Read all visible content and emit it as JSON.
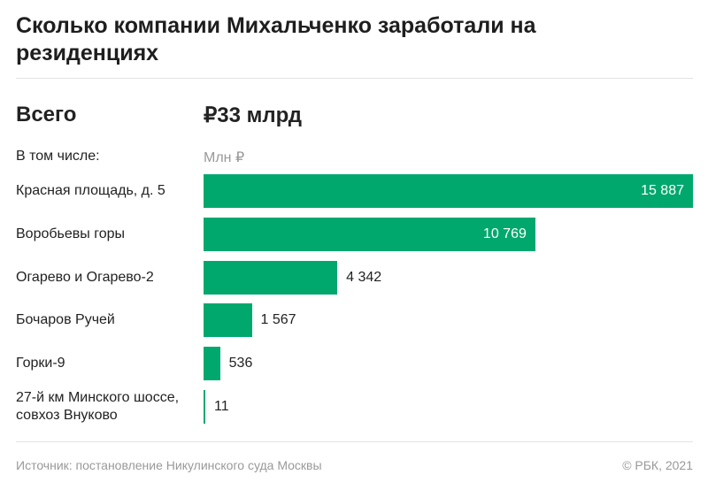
{
  "chart_data": {
    "type": "bar",
    "orientation": "horizontal",
    "title": "Сколько компании Михальченко заработали на резиденциях",
    "total_label": "Всего",
    "total_value": "₽33 млрд",
    "subheading": "В том числе:",
    "unit": "Млн ₽",
    "categories": [
      "Красная площадь, д. 5",
      "Воробьевы горы",
      "Огарево и Огарево-2",
      "Бочаров Ручей",
      "Горки-9",
      "27-й км Минского шоссе, совхоз Внуково"
    ],
    "values": [
      15887,
      10769,
      4342,
      1567,
      536,
      11
    ],
    "value_labels": [
      "15 887",
      "10 769",
      "4 342",
      "1 567",
      "536",
      "11"
    ],
    "bar_color": "#00a86e",
    "source": "Источник: постановление Никулинского суда Москвы",
    "copyright": "© РБК, 2021"
  }
}
